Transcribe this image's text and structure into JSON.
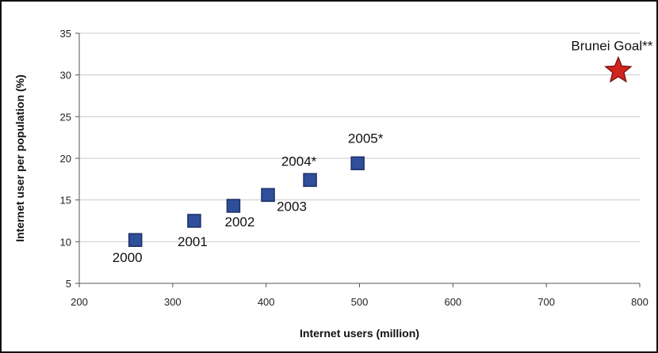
{
  "chart_data": {
    "type": "scatter",
    "title": "",
    "xlabel": "Internet users (million)",
    "ylabel": "Internet user per population (%)",
    "xlim": [
      200,
      800
    ],
    "ylim": [
      5,
      35
    ],
    "x_ticks": [
      200,
      300,
      400,
      500,
      600,
      700,
      800
    ],
    "y_ticks": [
      5,
      10,
      15,
      20,
      25,
      30,
      35
    ],
    "grid": "horizontal",
    "legend": "none",
    "series": [
      {
        "marker": "square",
        "color": "#2f4f9a",
        "points": [
          {
            "x": 260,
            "y": 10.2,
            "label": "2000"
          },
          {
            "x": 323,
            "y": 12.5,
            "label": "2001"
          },
          {
            "x": 365,
            "y": 14.3,
            "label": "2002"
          },
          {
            "x": 402,
            "y": 15.6,
            "label": "2003"
          },
          {
            "x": 447,
            "y": 17.4,
            "label": "2004*"
          },
          {
            "x": 498,
            "y": 19.4,
            "label": "2005*"
          }
        ]
      },
      {
        "marker": "star",
        "color": "#d0251f",
        "points": [
          {
            "x": 777,
            "y": 30.5,
            "label": "Brunei Goal**"
          }
        ]
      }
    ]
  }
}
